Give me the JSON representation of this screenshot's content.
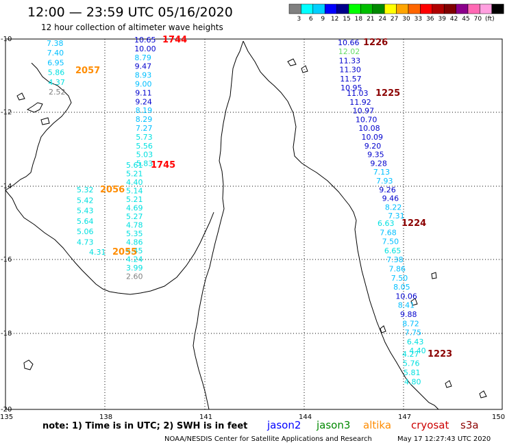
{
  "title": "12:00 — 23:59 UTC 05/16/2020",
  "subtitle": "12 hour collection of altimeter wave heights",
  "legend": {
    "colors": [
      "#808080",
      "#00ffff",
      "#00cfff",
      "#0000ff",
      "#00008b",
      "#00ff00",
      "#00bf00",
      "#008800",
      "#ffff00",
      "#ffa500",
      "#ff6600",
      "#ff0000",
      "#b00000",
      "#800000",
      "#8b008b",
      "#ff69b4",
      "#ffa0e0",
      "#000000"
    ],
    "labels": [
      "3",
      "6",
      "9",
      "12",
      "15",
      "18",
      "21",
      "24",
      "27",
      "30",
      "33",
      "36",
      "39",
      "42",
      "45",
      "70",
      "(ft)"
    ]
  },
  "axes": {
    "lat_labels": [
      "-10",
      "-12",
      "-14",
      "-16",
      "-18",
      "-20"
    ],
    "lon_labels": [
      "135",
      "138",
      "141",
      "144",
      "147",
      "150"
    ]
  },
  "passes": [
    {
      "time": "2057",
      "color": "#ff8c00",
      "values": [
        {
          "v": "7.38",
          "c": "#00bfff"
        },
        {
          "v": "7.40",
          "c": "#00bfff"
        },
        {
          "v": "6.95",
          "c": "#00bfff"
        },
        {
          "v": "5.86",
          "c": "#00e0e0"
        },
        {
          "v": "4.37",
          "c": "#00e0e0"
        },
        {
          "v": "2.52",
          "c": "#808080"
        }
      ]
    },
    {
      "time": "1744",
      "color": "#ff0000",
      "values": [
        {
          "v": "10.65",
          "c": "#0000cd"
        },
        {
          "v": "10.00",
          "c": "#0000cd"
        },
        {
          "v": "8.79",
          "c": "#00bfff"
        },
        {
          "v": "9.47",
          "c": "#0000cd"
        },
        {
          "v": "8.93",
          "c": "#00bfff"
        },
        {
          "v": "9.00",
          "c": "#00bfff"
        },
        {
          "v": "9.11",
          "c": "#0000cd"
        },
        {
          "v": "9.24",
          "c": "#0000cd"
        },
        {
          "v": "8.19",
          "c": "#00bfff"
        },
        {
          "v": "8.29",
          "c": "#00bfff"
        },
        {
          "v": "7.27",
          "c": "#00bfff"
        },
        {
          "v": "5.73",
          "c": "#00e0e0"
        },
        {
          "v": "5.56",
          "c": "#00e0e0"
        },
        {
          "v": "5.03",
          "c": "#00e0e0"
        },
        {
          "v": "5.83",
          "c": "#00e0e0"
        }
      ]
    },
    {
      "time": "1745",
      "color": "#ff0000",
      "values": [
        {
          "v": "5.61",
          "c": "#00e0e0"
        },
        {
          "v": "5.21",
          "c": "#00e0e0"
        },
        {
          "v": "4.40",
          "c": "#00e0e0"
        },
        {
          "v": "5.14",
          "c": "#00e0e0"
        },
        {
          "v": "5.21",
          "c": "#00e0e0"
        },
        {
          "v": "4.69",
          "c": "#00e0e0"
        },
        {
          "v": "5.27",
          "c": "#00e0e0"
        },
        {
          "v": "4.78",
          "c": "#00e0e0"
        },
        {
          "v": "5.35",
          "c": "#00e0e0"
        },
        {
          "v": "4.86",
          "c": "#00e0e0"
        },
        {
          "v": "4.45",
          "c": "#00e0e0"
        },
        {
          "v": "4.24",
          "c": "#00e0e0"
        },
        {
          "v": "3.99",
          "c": "#00e0e0"
        },
        {
          "v": "2.60",
          "c": "#808080"
        }
      ]
    },
    {
      "time": "2056",
      "color": "#ff8c00",
      "values": [
        {
          "v": "5.32",
          "c": "#00e0e0"
        },
        {
          "v": "5.42",
          "c": "#00e0e0"
        },
        {
          "v": "5.43",
          "c": "#00e0e0"
        },
        {
          "v": "5.64",
          "c": "#00e0e0"
        },
        {
          "v": "5.06",
          "c": "#00e0e0"
        },
        {
          "v": "4.73",
          "c": "#00e0e0"
        }
      ]
    },
    {
      "time": "2055",
      "color": "#ff8c00",
      "values": [
        {
          "v": "4.31",
          "c": "#00e0e0"
        }
      ]
    },
    {
      "time": "1226",
      "color": "#8b0000",
      "values": [
        {
          "v": "10.66",
          "c": "#0000cd"
        },
        {
          "v": "12.02",
          "c": "#66dd66"
        },
        {
          "v": "11.33",
          "c": "#0000cd"
        },
        {
          "v": "11.30",
          "c": "#0000cd"
        },
        {
          "v": "11.57",
          "c": "#0000cd"
        },
        {
          "v": "10.95",
          "c": "#0000cd"
        }
      ]
    },
    {
      "time": "1225",
      "color": "#8b0000",
      "values": [
        {
          "v": "11.03",
          "c": "#0000cd"
        },
        {
          "v": "11.92",
          "c": "#0000cd"
        },
        {
          "v": "10.97",
          "c": "#0000cd"
        },
        {
          "v": "10.70",
          "c": "#0000cd"
        },
        {
          "v": "10.08",
          "c": "#0000cd"
        },
        {
          "v": "10.09",
          "c": "#0000cd"
        },
        {
          "v": "9.20",
          "c": "#0000cd"
        },
        {
          "v": "9.35",
          "c": "#0000cd"
        },
        {
          "v": "9.28",
          "c": "#0000cd"
        },
        {
          "v": "7.13",
          "c": "#00bfff"
        },
        {
          "v": "7.93",
          "c": "#00bfff"
        },
        {
          "v": "9.26",
          "c": "#0000cd"
        },
        {
          "v": "9.46",
          "c": "#0000cd"
        },
        {
          "v": "8.22",
          "c": "#00bfff"
        },
        {
          "v": "7.31",
          "c": "#00bfff"
        }
      ]
    },
    {
      "time": "1224",
      "color": "#8b0000",
      "values": [
        {
          "v": "6.63",
          "c": "#00e0e0"
        },
        {
          "v": "7.68",
          "c": "#00bfff"
        },
        {
          "v": "7.50",
          "c": "#00bfff"
        },
        {
          "v": "6.65",
          "c": "#00e0e0"
        },
        {
          "v": "7.38",
          "c": "#00bfff"
        },
        {
          "v": "7.86",
          "c": "#00bfff"
        },
        {
          "v": "7.50",
          "c": "#00bfff"
        },
        {
          "v": "8.05",
          "c": "#00bfff"
        },
        {
          "v": "10.06",
          "c": "#0000cd"
        },
        {
          "v": "8.41",
          "c": "#00bfff"
        },
        {
          "v": "9.88",
          "c": "#0000cd"
        },
        {
          "v": "8.72",
          "c": "#00bfff"
        },
        {
          "v": "7.75",
          "c": "#00bfff"
        },
        {
          "v": "6.43",
          "c": "#00e0e0"
        },
        {
          "v": "4.40",
          "c": "#00e0e0"
        }
      ]
    },
    {
      "time": "1223",
      "color": "#8b0000",
      "values": [
        {
          "v": "4.27",
          "c": "#00e0e0"
        },
        {
          "v": "5.76",
          "c": "#00e0e0"
        },
        {
          "v": "5.81",
          "c": "#00e0e0"
        },
        {
          "v": "4.80",
          "c": "#00e0e0"
        }
      ]
    }
  ],
  "note": "note:  1) Time is in UTC; 2) SWH is in feet",
  "satellites": [
    {
      "name": "jason2",
      "color": "#0000ff"
    },
    {
      "name": "jason3",
      "color": "#008800"
    },
    {
      "name": "altika",
      "color": "#ff8c00"
    },
    {
      "name": "cryosat",
      "color": "#cc0000"
    },
    {
      "name": "s3a",
      "color": "#8b0000"
    }
  ],
  "credit": "NOAA/NESDIS Center for Satellite Applications and Research",
  "generated": "May 17 12:27:43 UTC 2020"
}
